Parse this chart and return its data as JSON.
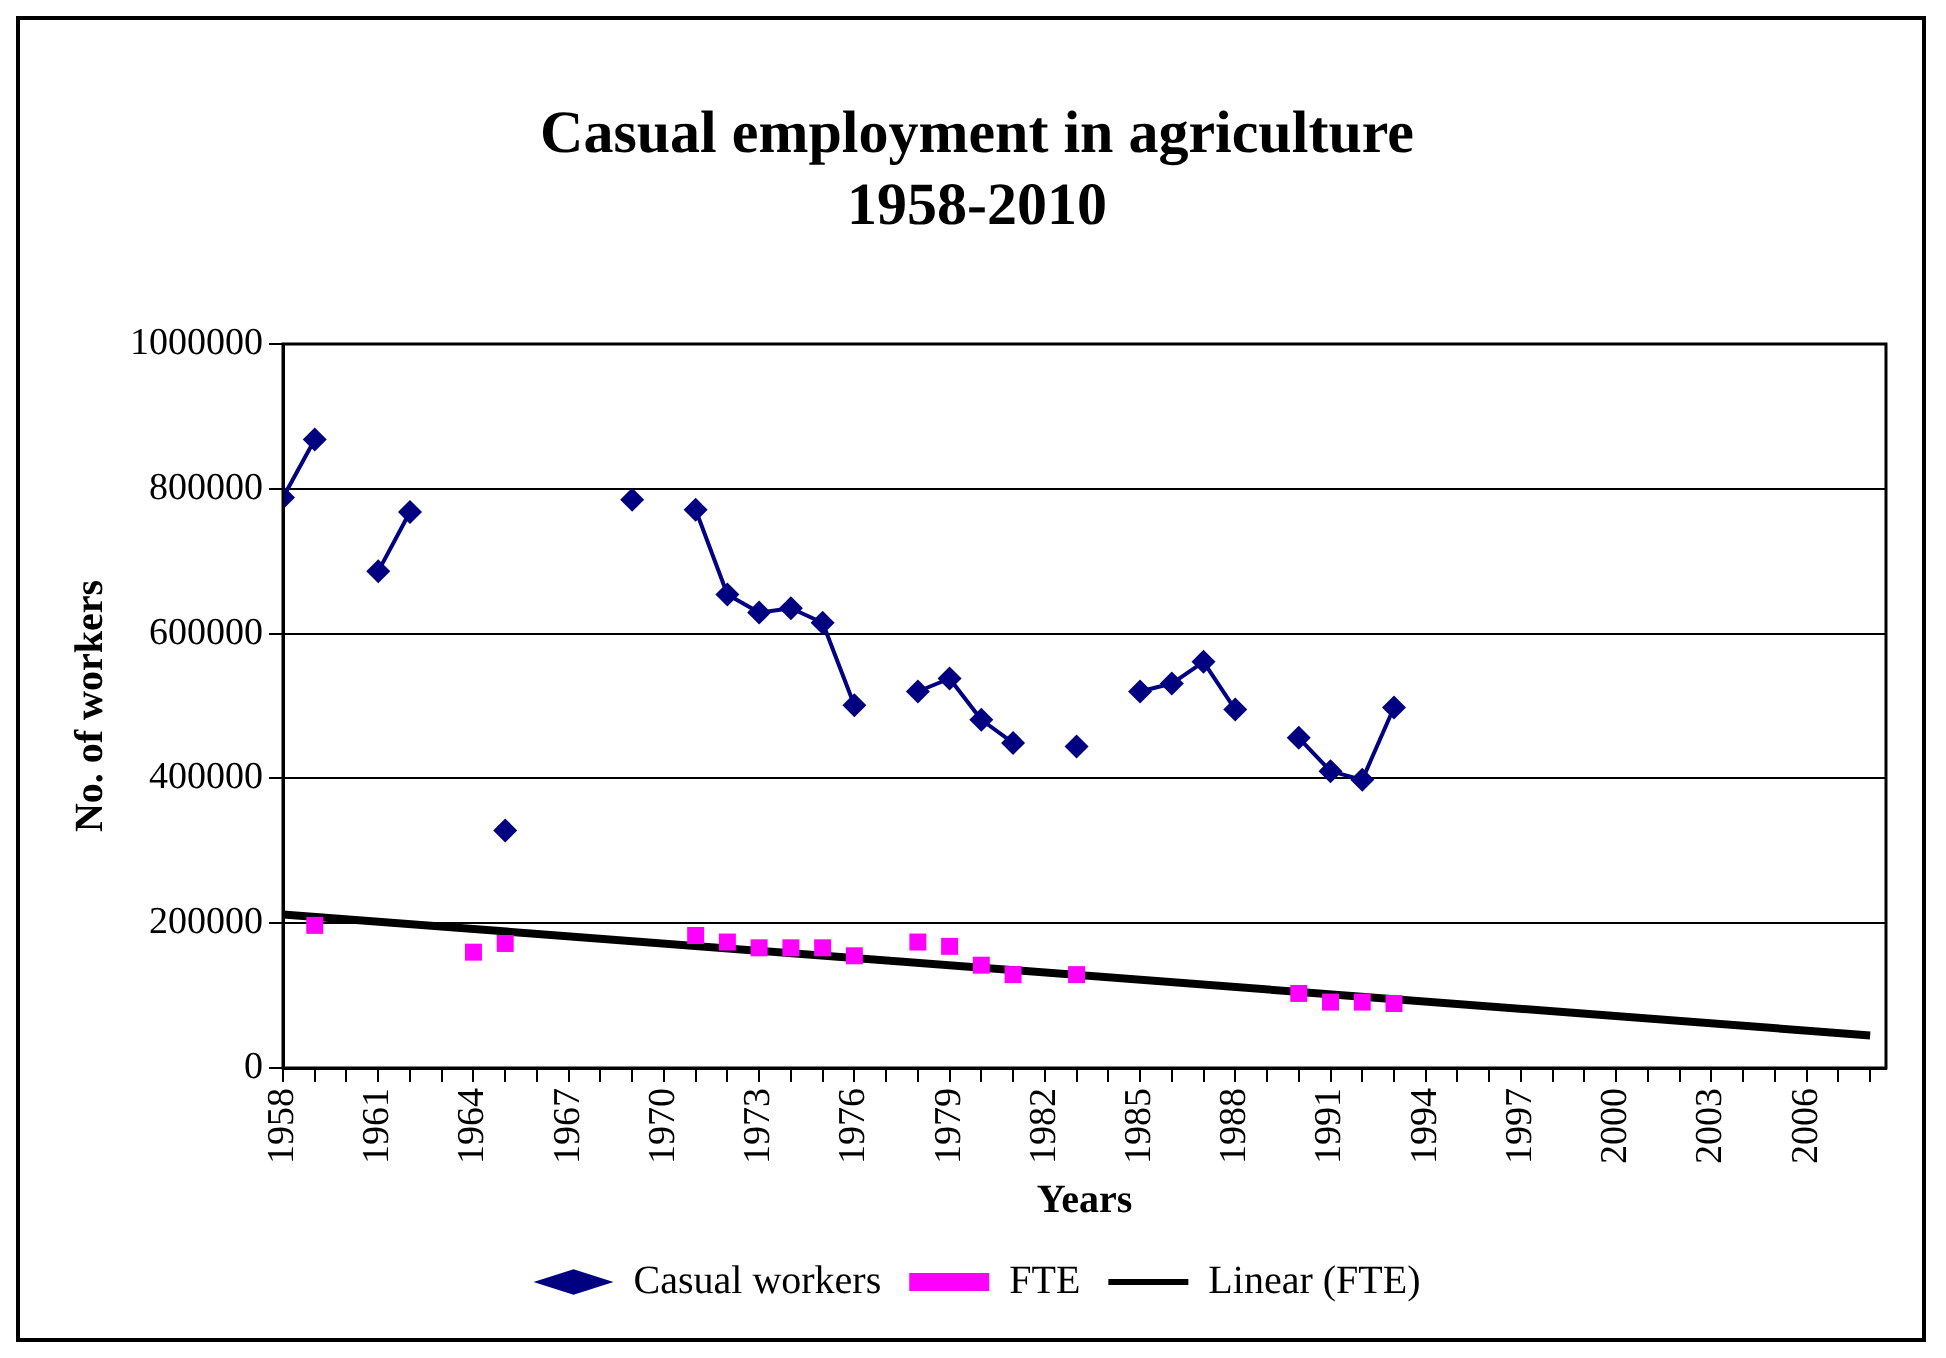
{
  "chart_data": {
    "type": "line",
    "title": "Casual employment in agriculture\n1958-2010",
    "xlabel": "Years",
    "ylabel": "No. of workers",
    "xlim": [
      1958,
      2008.5
    ],
    "xticks": [
      1958,
      {
        "value": 1959,
        "label": null
      },
      {
        "value": 1960,
        "label": null
      },
      1961,
      {
        "value": 1962,
        "label": null
      },
      {
        "value": 1963,
        "label": null
      },
      1964,
      {
        "value": 1965,
        "label": null
      },
      {
        "value": 1966,
        "label": null
      },
      1967,
      {
        "value": 1968,
        "label": null
      },
      {
        "value": 1969,
        "label": null
      },
      1970,
      {
        "value": 1971,
        "label": null
      },
      {
        "value": 1972,
        "label": null
      },
      1973,
      {
        "value": 1974,
        "label": null
      },
      {
        "value": 1975,
        "label": null
      },
      1976,
      {
        "value": 1977,
        "label": null
      },
      {
        "value": 1978,
        "label": null
      },
      1979,
      {
        "value": 1980,
        "label": null
      },
      {
        "value": 1981,
        "label": null
      },
      1982,
      {
        "value": 1983,
        "label": null
      },
      {
        "value": 1984,
        "label": null
      },
      1985,
      {
        "value": 1986,
        "label": null
      },
      {
        "value": 1987,
        "label": null
      },
      1988,
      {
        "value": 1989,
        "label": null
      },
      {
        "value": 1990,
        "label": null
      },
      1991,
      {
        "value": 1992,
        "label": null
      },
      {
        "value": 1993,
        "label": null
      },
      1994,
      {
        "value": 1995,
        "label": null
      },
      {
        "value": 1996,
        "label": null
      },
      1997,
      {
        "value": 1998,
        "label": null
      },
      {
        "value": 1999,
        "label": null
      },
      2000,
      {
        "value": 2001,
        "label": null
      },
      {
        "value": 2002,
        "label": null
      },
      2003,
      {
        "value": 2004,
        "label": null
      },
      {
        "value": 2005,
        "label": null
      },
      2006,
      {
        "value": 2007,
        "label": null
      },
      {
        "value": 2008,
        "label": null
      }
    ],
    "ylim": [
      0,
      1000000
    ],
    "yticks": [
      0,
      200000,
      400000,
      600000,
      800000,
      1000000
    ],
    "grid": "y",
    "legend": "bottom",
    "series": [
      {
        "name": "Casual workers",
        "type": "line",
        "marker": "diamond",
        "color": "#000080",
        "x": [
          1958,
          1959,
          1960,
          1961,
          1962,
          1963,
          1964,
          1965,
          1966,
          1967,
          1968,
          1969,
          1970,
          1971,
          1972,
          1973,
          1974,
          1975,
          1976,
          1977,
          1978,
          1979,
          1980,
          1981,
          1982,
          1983,
          1984,
          1985,
          1986,
          1987,
          1988,
          1989,
          1990,
          1991,
          1992,
          1993
        ],
        "values": [
          788000,
          868000,
          null,
          686000,
          768000,
          null,
          null,
          328000,
          null,
          null,
          null,
          785000,
          null,
          771000,
          654000,
          629000,
          635000,
          615000,
          501000,
          null,
          520000,
          538000,
          481000,
          449000,
          null,
          444000,
          null,
          520000,
          531000,
          561000,
          495000,
          null,
          456000,
          410000,
          398000,
          498000
        ]
      },
      {
        "name": "FTE",
        "type": "scatter",
        "marker": "square",
        "color": "#ff00ff",
        "x": [
          1959,
          1964,
          1965,
          1971,
          1972,
          1973,
          1974,
          1975,
          1976,
          1978,
          1979,
          1980,
          1981,
          1983,
          1990,
          1991,
          1992,
          1993
        ],
        "values": [
          197000,
          160000,
          172000,
          183000,
          174000,
          166000,
          166000,
          166000,
          155000,
          174000,
          168000,
          142000,
          129000,
          129000,
          103000,
          91000,
          91000,
          89000
        ]
      },
      {
        "name": "Linear (FTE)",
        "type": "line",
        "marker": "none",
        "color": "#000000",
        "x": [
          1958,
          2008
        ],
        "values": [
          212000,
          45000
        ]
      }
    ]
  }
}
